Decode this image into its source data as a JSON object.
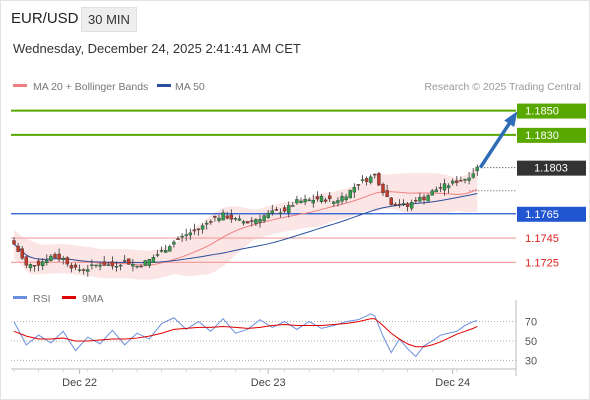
{
  "header": {
    "pair": "EUR/USD",
    "timeframe": "30 MIN"
  },
  "datetime": "Wednesday, December 24, 2025 2:41:41 AM CET",
  "legend": {
    "ma20": "MA 20 + Bollinger Bands",
    "ma50": "MA 50"
  },
  "credit": "Research © 2025 Trading Central",
  "rsi_legend": {
    "rsi": "RSI",
    "ma": "9MA"
  },
  "colors": {
    "ma20": "#f08080",
    "ma50": "#2b4f9e",
    "target": "#58a800",
    "support": "#2255d0",
    "support_minor": "#f2a0a0",
    "price_label": "#333333",
    "bull": "#2e9e4a",
    "bear": "#c0392b",
    "arrow": "#2e6cb8",
    "rsi": "#6a8fdc",
    "rsi_ma": "#e00000"
  },
  "chart_data": {
    "type": "candlestick",
    "x_tick_labels": [
      "Dec 22",
      "Dec 23",
      "Dec 24"
    ],
    "ylim": [
      1.1708,
      1.1862
    ],
    "levels": [
      {
        "value": 1.185,
        "label": "1.1850",
        "kind": "target"
      },
      {
        "value": 1.183,
        "label": "1.1830",
        "kind": "target"
      },
      {
        "value": 1.1803,
        "label": "1.1803",
        "kind": "current"
      },
      {
        "value": 1.1765,
        "label": "1.1765",
        "kind": "support"
      },
      {
        "value": 1.1745,
        "label": "1.1745",
        "kind": "support_minor"
      },
      {
        "value": 1.1725,
        "label": "1.1725",
        "kind": "support_minor"
      }
    ],
    "close_path": [
      [
        0,
        1.174
      ],
      [
        3,
        1.1722
      ],
      [
        6,
        1.1724
      ],
      [
        9,
        1.173
      ],
      [
        12,
        1.1728
      ],
      [
        15,
        1.1719
      ],
      [
        18,
        1.172
      ],
      [
        21,
        1.1724
      ],
      [
        24,
        1.1722
      ],
      [
        27,
        1.1726
      ],
      [
        30,
        1.1722
      ],
      [
        33,
        1.1727
      ],
      [
        36,
        1.1734
      ],
      [
        39,
        1.1742
      ],
      [
        42,
        1.1748
      ],
      [
        45,
        1.1752
      ],
      [
        48,
        1.176
      ],
      [
        51,
        1.1764
      ],
      [
        54,
        1.176
      ],
      [
        57,
        1.1758
      ],
      [
        60,
        1.1762
      ],
      [
        63,
        1.1766
      ],
      [
        66,
        1.1768
      ],
      [
        69,
        1.1775
      ],
      [
        72,
        1.1776
      ],
      [
        75,
        1.1778
      ],
      [
        78,
        1.1775
      ],
      [
        81,
        1.1781
      ],
      [
        84,
        1.179
      ],
      [
        87,
        1.1795
      ],
      [
        88,
        1.1797
      ],
      [
        90,
        1.1784
      ],
      [
        92,
        1.1774
      ],
      [
        94,
        1.1773
      ],
      [
        96,
        1.1771
      ],
      [
        98,
        1.1777
      ],
      [
        100,
        1.1778
      ],
      [
        102,
        1.1783
      ],
      [
        104,
        1.1787
      ],
      [
        106,
        1.1789
      ],
      [
        108,
        1.1792
      ],
      [
        110,
        1.1794
      ],
      [
        112,
        1.1799
      ],
      [
        113,
        1.1803
      ]
    ],
    "forecast": {
      "from": [
        113,
        1.1803
      ],
      "to": [
        122,
        1.185
      ]
    },
    "rsi": {
      "levels": [
        70,
        50,
        30
      ],
      "ylim": [
        20,
        82
      ],
      "values": [
        [
          0,
          70
        ],
        [
          3,
          46
        ],
        [
          6,
          56
        ],
        [
          9,
          48
        ],
        [
          12,
          60
        ],
        [
          15,
          40
        ],
        [
          18,
          54
        ],
        [
          21,
          47
        ],
        [
          24,
          61
        ],
        [
          27,
          46
        ],
        [
          30,
          58
        ],
        [
          33,
          52
        ],
        [
          36,
          68
        ],
        [
          39,
          74
        ],
        [
          42,
          62
        ],
        [
          45,
          70
        ],
        [
          48,
          60
        ],
        [
          51,
          73
        ],
        [
          54,
          58
        ],
        [
          57,
          62
        ],
        [
          60,
          72
        ],
        [
          63,
          64
        ],
        [
          66,
          70
        ],
        [
          69,
          62
        ],
        [
          72,
          70
        ],
        [
          75,
          63
        ],
        [
          78,
          66
        ],
        [
          81,
          70
        ],
        [
          84,
          72
        ],
        [
          87,
          78
        ],
        [
          88,
          76
        ],
        [
          90,
          55
        ],
        [
          92,
          38
        ],
        [
          94,
          52
        ],
        [
          96,
          42
        ],
        [
          98,
          34
        ],
        [
          100,
          45
        ],
        [
          102,
          50
        ],
        [
          104,
          56
        ],
        [
          106,
          58
        ],
        [
          108,
          60
        ],
        [
          110,
          66
        ],
        [
          112,
          70
        ],
        [
          113,
          71
        ]
      ],
      "ma_values": [
        [
          0,
          60
        ],
        [
          3,
          55
        ],
        [
          6,
          52
        ],
        [
          9,
          52
        ],
        [
          12,
          53
        ],
        [
          15,
          50
        ],
        [
          18,
          50
        ],
        [
          21,
          51
        ],
        [
          24,
          52
        ],
        [
          27,
          52
        ],
        [
          30,
          53
        ],
        [
          33,
          55
        ],
        [
          36,
          58
        ],
        [
          39,
          62
        ],
        [
          42,
          63
        ],
        [
          45,
          64
        ],
        [
          48,
          64
        ],
        [
          51,
          65
        ],
        [
          54,
          64
        ],
        [
          57,
          63
        ],
        [
          60,
          64
        ],
        [
          63,
          66
        ],
        [
          66,
          67
        ],
        [
          69,
          66
        ],
        [
          72,
          66
        ],
        [
          75,
          66
        ],
        [
          78,
          67
        ],
        [
          81,
          68
        ],
        [
          84,
          70
        ],
        [
          87,
          73
        ],
        [
          88,
          73
        ],
        [
          90,
          66
        ],
        [
          92,
          58
        ],
        [
          94,
          52
        ],
        [
          96,
          47
        ],
        [
          98,
          44
        ],
        [
          100,
          44
        ],
        [
          102,
          46
        ],
        [
          104,
          49
        ],
        [
          106,
          53
        ],
        [
          108,
          57
        ],
        [
          110,
          60
        ],
        [
          112,
          63
        ],
        [
          113,
          65
        ]
      ]
    }
  }
}
